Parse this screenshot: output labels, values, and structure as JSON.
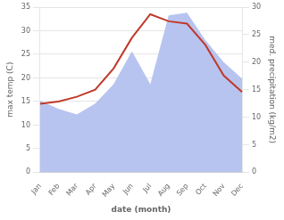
{
  "chart_data": {
    "type": "line",
    "categories": [
      "Jan",
      "Feb",
      "Mar",
      "Apr",
      "May",
      "Jun",
      "Jul",
      "Aug",
      "Sep",
      "Oct",
      "Nov",
      "Dec"
    ],
    "xlabel": "date (month)",
    "ylabel": "max temp (C)",
    "y2label": "med. precipitation (kg/m2)",
    "series": [
      {
        "type": "area",
        "axis": "y2",
        "color": "#b8c4f0",
        "values": [
          13.0,
          11.5,
          10.5,
          12.5,
          16.0,
          22.0,
          16.0,
          28.5,
          29.0,
          24.0,
          20.0,
          17.0
        ]
      },
      {
        "type": "line",
        "color": "#c0392b",
        "values": [
          14.5,
          15.0,
          16.0,
          17.5,
          22.0,
          28.5,
          33.5,
          32.0,
          31.5,
          27.0,
          20.5,
          17.0
        ]
      }
    ],
    "ylim": [
      0,
      35
    ],
    "yticks": [
      0,
      5,
      10,
      15,
      20,
      25,
      30,
      35
    ],
    "y2lim": [
      0,
      30
    ],
    "y2ticks": [
      0,
      5,
      10,
      15,
      20,
      25,
      30
    ],
    "grid": true
  }
}
